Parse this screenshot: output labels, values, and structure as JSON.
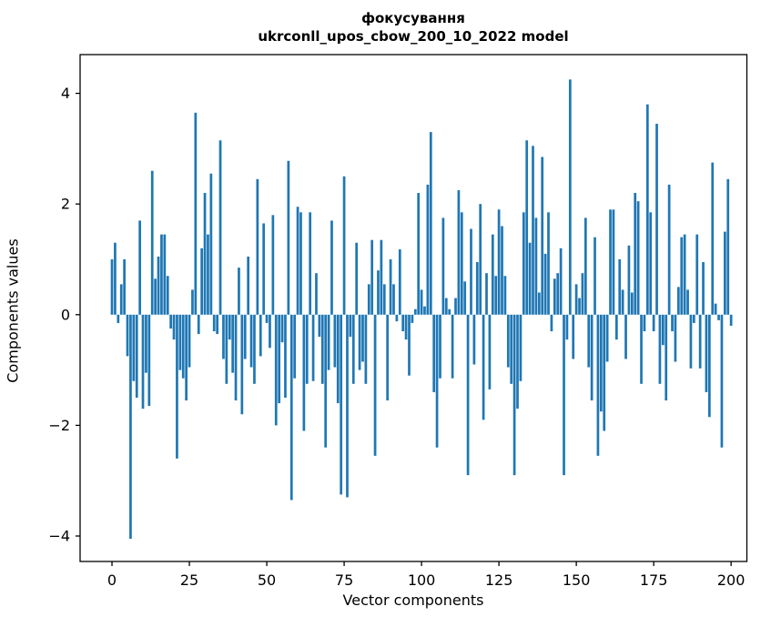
{
  "figure": {
    "title_line1": "фокусування",
    "title_line2": "ukrconll_upos_cbow_200_10_2022 model",
    "background_color": "#ffffff",
    "spine_color": "#000000"
  },
  "chart_data": {
    "type": "bar",
    "title": "фокусування ukrconll_upos_cbow_200_10_2022 model",
    "xlabel": "Vector components",
    "ylabel": "Components values",
    "bar_color": "#1f77b4",
    "grid": false,
    "legend": false,
    "xlim": [
      -10.3,
      205.1
    ],
    "ylim": [
      -4.46,
      4.7
    ],
    "x_ticks": [
      0,
      25,
      50,
      75,
      100,
      125,
      150,
      175,
      200
    ],
    "y_ticks": [
      -4,
      -2,
      0,
      2,
      4
    ],
    "bar_width": 0.8,
    "categories_note": "vector component index 0..200",
    "values": [
      1.0,
      1.3,
      -0.15,
      0.55,
      1.0,
      -0.75,
      -4.05,
      -1.2,
      -1.5,
      1.7,
      -1.7,
      -1.05,
      -1.65,
      2.6,
      0.65,
      1.05,
      1.45,
      1.45,
      0.7,
      -0.25,
      -0.45,
      -2.6,
      -1.0,
      -1.15,
      -1.55,
      -0.95,
      0.45,
      3.65,
      -0.35,
      1.2,
      2.2,
      1.45,
      2.55,
      -0.3,
      -0.35,
      3.15,
      -0.8,
      -1.25,
      -0.45,
      -1.05,
      -1.55,
      0.85,
      -1.8,
      -0.8,
      1.05,
      -0.95,
      -1.25,
      2.45,
      -0.75,
      1.65,
      -0.15,
      -0.6,
      1.8,
      -2.0,
      -1.6,
      -0.5,
      -1.5,
      2.78,
      -3.35,
      -1.15,
      1.95,
      1.85,
      -2.1,
      -1.25,
      1.85,
      -1.2,
      0.75,
      -0.4,
      -1.25,
      -2.4,
      -1.0,
      1.7,
      -0.95,
      -1.6,
      -3.25,
      2.5,
      -3.3,
      -0.4,
      -1.25,
      1.3,
      -1.0,
      -0.85,
      -1.25,
      0.55,
      1.35,
      -2.55,
      0.8,
      1.35,
      0.55,
      -1.55,
      1.0,
      0.55,
      -0.12,
      1.18,
      -0.3,
      -0.45,
      -1.1,
      -0.15,
      0.1,
      2.2,
      0.45,
      0.15,
      2.35,
      3.3,
      -1.4,
      -2.4,
      -1.15,
      1.75,
      0.3,
      0.1,
      -1.15,
      0.3,
      2.25,
      1.85,
      0.6,
      -2.9,
      1.55,
      -0.9,
      0.95,
      2.0,
      -1.9,
      0.75,
      -1.35,
      1.45,
      0.7,
      1.9,
      1.6,
      0.7,
      -0.95,
      -1.25,
      -2.9,
      -1.7,
      -1.2,
      1.85,
      3.15,
      1.3,
      3.05,
      1.75,
      0.4,
      2.85,
      1.1,
      1.85,
      -0.3,
      0.65,
      0.75,
      1.2,
      -2.9,
      -0.45,
      4.25,
      -0.8,
      0.55,
      0.3,
      0.75,
      1.75,
      -0.95,
      -1.55,
      1.4,
      -2.55,
      -1.75,
      -2.1,
      -0.85,
      1.9,
      1.9,
      -0.45,
      1.0,
      0.45,
      -0.8,
      1.25,
      0.4,
      2.2,
      2.05,
      -1.25,
      -0.3,
      3.8,
      1.85,
      -0.3,
      3.45,
      -1.25,
      -0.55,
      -1.55,
      2.35,
      -0.3,
      -0.85,
      0.5,
      1.4,
      1.45,
      0.45,
      -0.97,
      -0.15,
      1.45,
      -0.97,
      0.95,
      -1.4,
      -1.85,
      2.75,
      0.2,
      -0.1,
      -2.4,
      1.5,
      2.45,
      -0.2
    ]
  }
}
